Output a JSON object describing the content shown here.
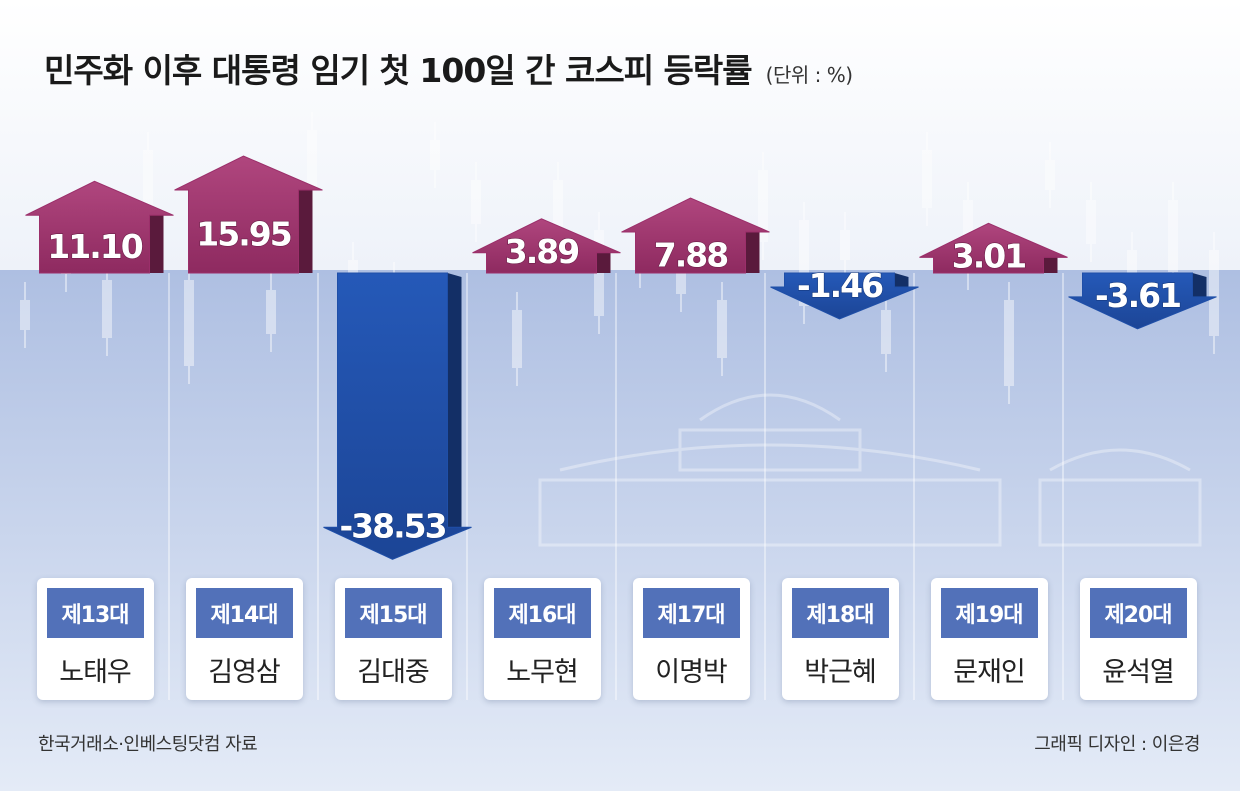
{
  "header": {
    "title": "민주화 이후 대통령 임기 첫 100일 간 코스피 등락률",
    "unit": "(단위 : %)"
  },
  "footer": {
    "source": "한국거래소·인베스팅닷컴 자료",
    "credit": "그래픽 디자인 : 이은경"
  },
  "colors": {
    "positive": "#9b2f6a",
    "negative": "#1f4fa8",
    "ordinal_badge": "#5271b9",
    "background_lower": "#b4c6e8"
  },
  "chart_data": {
    "type": "bar",
    "title": "민주화 이후 대통령 임기 첫 100일 간 코스피 등락률",
    "unit": "%",
    "categories": [
      "제13대",
      "제14대",
      "제15대",
      "제16대",
      "제17대",
      "제18대",
      "제19대",
      "제20대"
    ],
    "presidents": [
      "노태우",
      "김영삼",
      "김대중",
      "노무현",
      "이명박",
      "박근혜",
      "문재인",
      "윤석열"
    ],
    "values": [
      11.1,
      15.95,
      -38.53,
      3.89,
      7.88,
      -1.46,
      3.01,
      -3.61
    ],
    "value_labels": [
      "11.10",
      "15.95",
      "-38.53",
      "3.89",
      "7.88",
      "-1.46",
      "3.01",
      "-3.61"
    ],
    "ylim": [
      -38.53,
      15.95
    ],
    "grid": false,
    "legend": "none"
  }
}
